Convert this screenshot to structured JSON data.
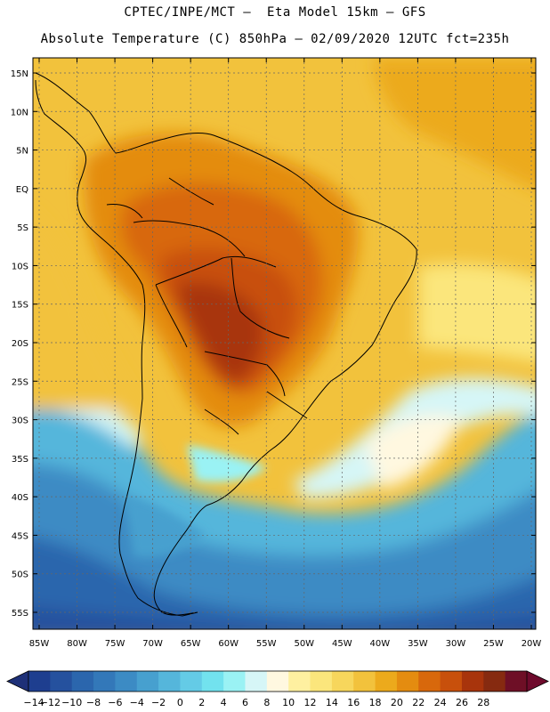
{
  "header": {
    "line1": "CPTEC/INPE/MCT –  Eta Model 15km – GFS",
    "line2": "Absolute Temperature (C) 850hPa – 02/09/2020 12UTC fct=235h"
  },
  "axes": {
    "lat_labels": [
      "15N",
      "10N",
      "5N",
      "EQ",
      "5S",
      "10S",
      "15S",
      "20S",
      "25S",
      "30S",
      "35S",
      "40S",
      "45S",
      "50S",
      "55S"
    ],
    "lon_labels": [
      "85W",
      "80W",
      "75W",
      "70W",
      "65W",
      "60W",
      "55W",
      "50W",
      "45W",
      "40W",
      "35W",
      "30W",
      "25W",
      "20W"
    ],
    "lat_values": [
      15,
      10,
      5,
      0,
      -5,
      -10,
      -15,
      -20,
      -25,
      -30,
      -35,
      -40,
      -45,
      -50,
      -55
    ],
    "lon_values": [
      -85,
      -80,
      -75,
      -70,
      -65,
      -60,
      -55,
      -50,
      -45,
      -40,
      -35,
      -30,
      -25,
      -20
    ]
  },
  "colorbar": {
    "labels": [
      "-14",
      "-12",
      "-10",
      "-8",
      "-6",
      "-4",
      "-2",
      "0",
      "2",
      "4",
      "6",
      "8",
      "10",
      "12",
      "14",
      "16",
      "18",
      "20",
      "22",
      "24",
      "26",
      "28"
    ],
    "colors": [
      "#1e3e8f",
      "#25519e",
      "#2b66ad",
      "#3378b9",
      "#3c8bc4",
      "#47a0cf",
      "#55b6db",
      "#64cbe6",
      "#72e2ee",
      "#9af2f4",
      "#d6f6f7",
      "#fff8e0",
      "#fef0a0",
      "#fbe67c",
      "#f7d65c",
      "#f2c23c",
      "#ecaa1c",
      "#e48c10",
      "#d8680c",
      "#c8500c",
      "#a8340c",
      "#862a10",
      "#6e0f26"
    ],
    "under_color": "#1e3078",
    "over_color": "#6e0a2c"
  },
  "map_layers": {
    "fields": "850hPa temperature shading",
    "features": [
      "coastline-and-borders",
      "lat-lon-gridlines"
    ]
  }
}
